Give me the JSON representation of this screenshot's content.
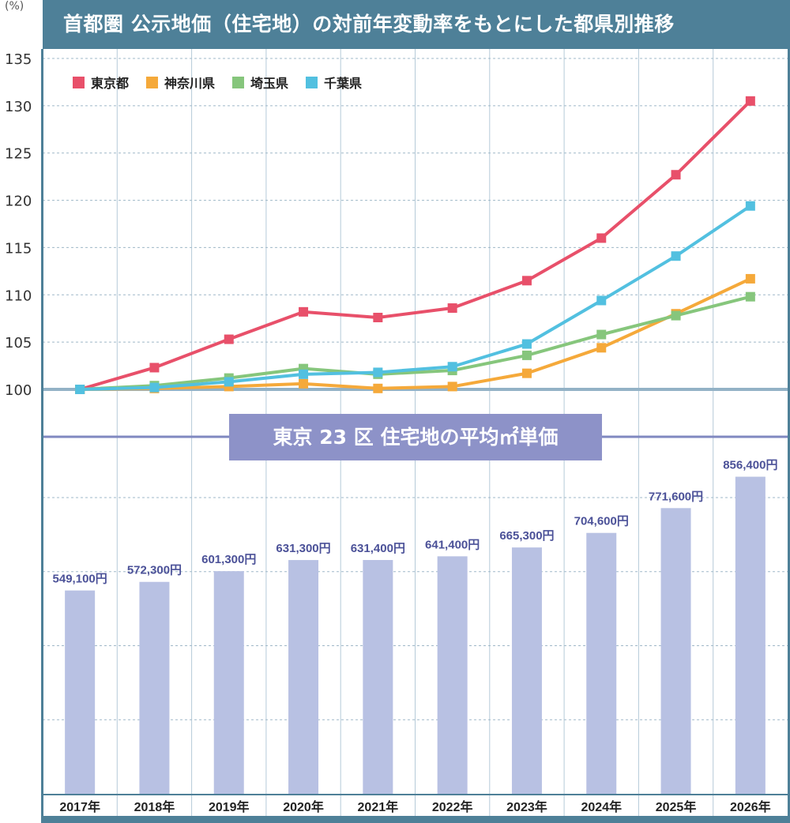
{
  "chart_data": [
    {
      "type": "line",
      "title": "首都圏 公示地価（住宅地）の対前年変動率をもとにした都県別推移",
      "ylabel": "(%)",
      "ylim": [
        100,
        135
      ],
      "yticks": [
        "100",
        "105",
        "110",
        "115",
        "120",
        "125",
        "130",
        "135"
      ],
      "grid": true,
      "legend_placement": "top-left",
      "x": [
        "2017年",
        "2018年",
        "2019年",
        "2020年",
        "2021年",
        "2022年",
        "2023年",
        "2024年",
        "2025年",
        "2026年"
      ],
      "series": [
        {
          "name": "東京都",
          "color": "#e8506a",
          "values": [
            100,
            102.3,
            105.3,
            108.2,
            107.6,
            108.6,
            111.5,
            116.0,
            122.7,
            130.5
          ]
        },
        {
          "name": "神奈川県",
          "color": "#f5a93a",
          "values": [
            100,
            100.1,
            100.3,
            100.6,
            100.1,
            100.3,
            101.7,
            104.4,
            108.0,
            111.7
          ]
        },
        {
          "name": "埼玉県",
          "color": "#86c67c",
          "values": [
            100,
            100.4,
            101.2,
            102.2,
            101.6,
            102.0,
            103.6,
            105.8,
            107.8,
            109.8
          ]
        },
        {
          "name": "千葉県",
          "color": "#52c0e0",
          "values": [
            100,
            100.2,
            100.8,
            101.6,
            101.8,
            102.4,
            104.8,
            109.4,
            114.1,
            119.4
          ]
        }
      ]
    },
    {
      "type": "bar",
      "title": "東京 23 区 住宅地の平均㎡単価",
      "color": "#b8c1e3",
      "label_color": "#4b5198",
      "ylim": [
        0,
        960000
      ],
      "grid": true,
      "categories": [
        "2017年",
        "2018年",
        "2019年",
        "2020年",
        "2021年",
        "2022年",
        "2023年",
        "2024年",
        "2025年",
        "2026年"
      ],
      "values": [
        549100,
        572300,
        601300,
        631300,
        631400,
        641400,
        665300,
        704600,
        771600,
        856400
      ],
      "labels": [
        "549,100円",
        "572,300円",
        "601,300円",
        "631,300円",
        "631,400円",
        "641,400円",
        "665,300円",
        "704,600円",
        "771,600円",
        "856,400円"
      ]
    }
  ]
}
